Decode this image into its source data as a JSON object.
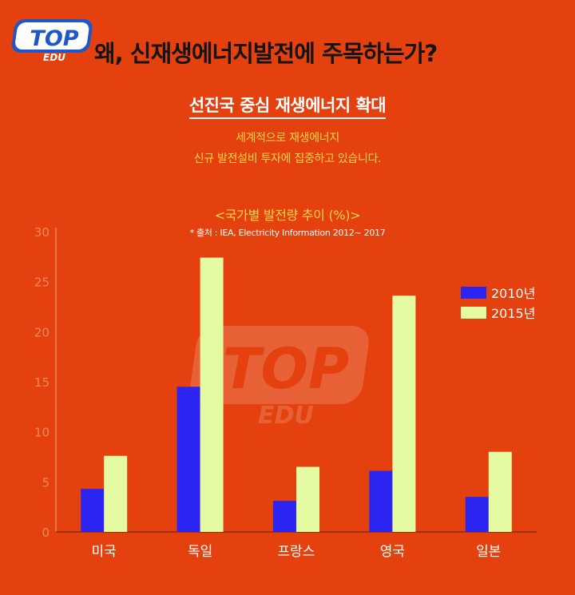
{
  "header": {
    "logo_text": "TOP",
    "logo_sub": "EDU",
    "title": "왜, 신재생에너지발전에 주목하는가?"
  },
  "section": {
    "title": "선진국 중심 재생에너지 확대",
    "desc_line1": "세계적으로 재생에너지",
    "desc_line2": "신규 발전설비 투자에 집중하고 있습니다."
  },
  "watermark": {
    "text": "TOP",
    "sub": "EDU"
  },
  "colors": {
    "background": "#e4410f",
    "series_2010": "#2c25f2",
    "series_2015": "#e4fba2",
    "accent_text": "#ffd54a"
  },
  "chart_data": {
    "type": "bar",
    "title": "<국가별 발전량 추이 (%)>",
    "source": "* 출처 : IEA, Electricity Information 2012~ 2017",
    "categories": [
      "미국",
      "독일",
      "프랑스",
      "영국",
      "일본"
    ],
    "series": [
      {
        "name": "2010년",
        "values": [
          4.3,
          14.5,
          3.1,
          6.1,
          3.5
        ]
      },
      {
        "name": "2015년",
        "values": [
          7.6,
          27.4,
          6.5,
          23.6,
          8.0
        ]
      }
    ],
    "yticks": [
      "0",
      "5",
      "10",
      "15",
      "20",
      "25",
      "30"
    ],
    "ylim": [
      0,
      30
    ],
    "legend_position": "right",
    "grid": false
  }
}
